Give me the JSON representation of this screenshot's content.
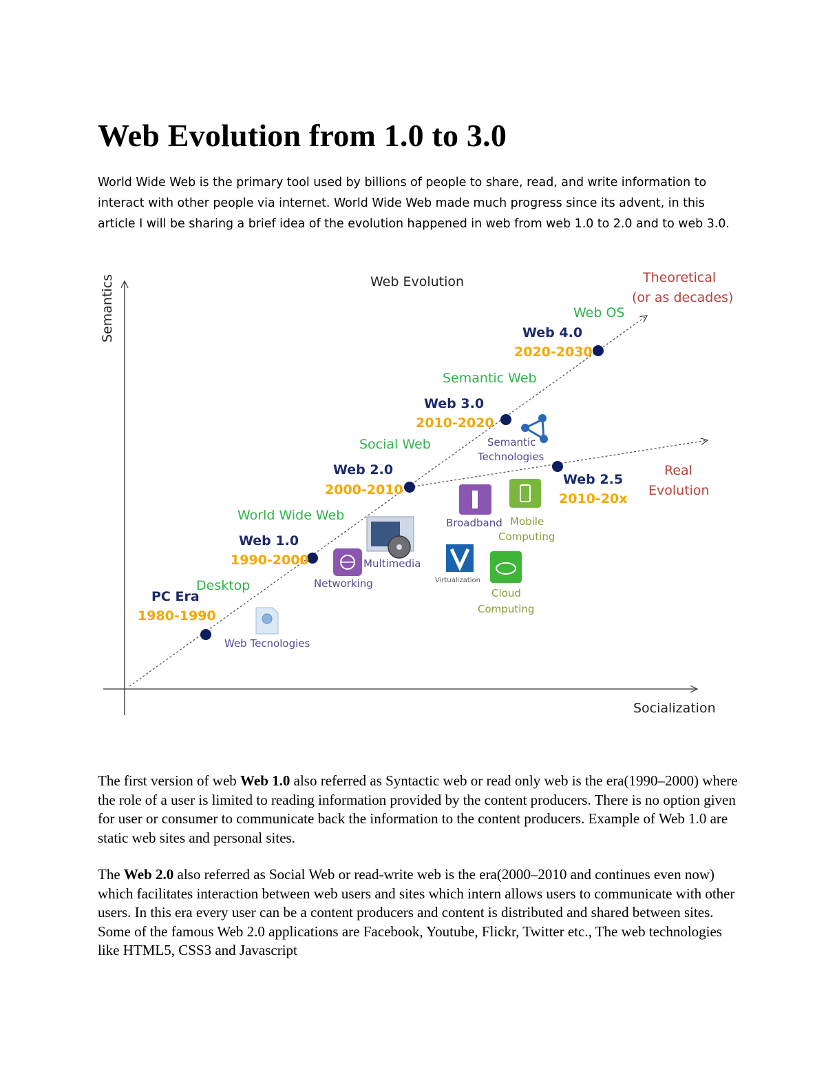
{
  "document": {
    "title": "Web Evolution from 1.0 to 3.0",
    "intro": "World Wide Web is the primary tool used by billions of people to share, read, and write information to interact with other people via internet. World Wide Web made much progress since its advent, in this article I will be sharing a brief idea of the evolution happened in web from web 1.0 to 2.0 and to web 3.0.",
    "para1": {
      "pre": "The first version of web ",
      "bold": "Web 1.0",
      "post": " also referred as Syntactic web or read only web is the era(1990–2000) where the role of a user is limited to reading information provided by the content producers. There is no option given for user or consumer to communicate back the information to the content producers. Example of Web 1.0 are static web sites and personal sites."
    },
    "para2": {
      "pre": "The ",
      "bold": "Web 2.0",
      "post": " also referred as Social Web or read-write web is the era(2000–2010 and continues even now) which facilitates interaction between web users and sites which intern allows users to communicate with other users. In this era every user can be a content producers and content is distributed and shared between sites. Some of the famous Web 2.0 applications are Facebook, Youtube, Flickr, Twitter etc., The web technologies like HTML5, CSS3 and Javascript"
    }
  },
  "diagram": {
    "title": "Web Evolution",
    "y_axis_label": "Semantics",
    "x_axis_label": "Socialization",
    "theoretical_line1": "Theoretical",
    "theoretical_line2": "(or as decades)",
    "real_line1": "Real",
    "real_line2": "Evolution",
    "eras": [
      {
        "name": "PC Era",
        "years": "1980-1990",
        "tag": "Desktop"
      },
      {
        "name": "Web 1.0",
        "years": "1990-2000",
        "tag": "World Wide Web"
      },
      {
        "name": "Web 2.0",
        "years": "2000-2010",
        "tag": "Social Web"
      },
      {
        "name": "Web 3.0",
        "years": "2010-2020",
        "tag": "Semantic Web"
      },
      {
        "name": "Web 4.0",
        "years": "2020-2030",
        "tag": "Web OS"
      },
      {
        "name": "Web 2.5",
        "years": "2010-20x"
      }
    ],
    "technologies": {
      "web_tech": "Web Tecnologies",
      "networking": "Networking",
      "multimedia": "Multimedia",
      "broadband": "Broadband",
      "mobile1": "Mobile",
      "mobile2": "Computing",
      "virtualization": "Virtualization",
      "cloud1": "Cloud",
      "cloud2": "Computing",
      "semantic1": "Semantic",
      "semantic2": "Technologies"
    },
    "colors": {
      "era_name": "#1b2a6b",
      "era_years": "#f5a800",
      "tag": "#2eb34a",
      "accent_red": "#b5413b",
      "dot": "#0d1d5e"
    }
  }
}
